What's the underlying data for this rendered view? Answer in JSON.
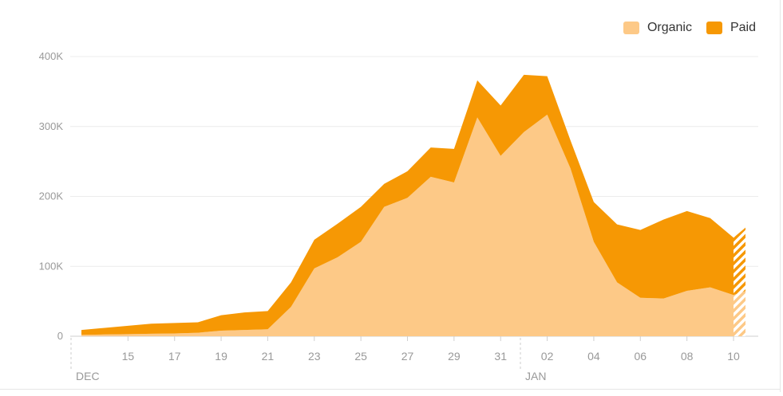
{
  "chart_data": {
    "type": "area",
    "stacked": true,
    "x": [
      "Dec 13",
      "Dec 14",
      "Dec 15",
      "Dec 16",
      "Dec 17",
      "Dec 18",
      "Dec 19",
      "Dec 20",
      "Dec 21",
      "Dec 22",
      "Dec 23",
      "Dec 24",
      "Dec 25",
      "Dec 26",
      "Dec 27",
      "Dec 28",
      "Dec 29",
      "Dec 30",
      "Dec 31",
      "Jan 01",
      "Jan 02",
      "Jan 03",
      "Jan 04",
      "Jan 05",
      "Jan 06",
      "Jan 07",
      "Jan 08",
      "Jan 09",
      "Jan 10"
    ],
    "series": [
      {
        "name": "Organic",
        "color": "#fdc987",
        "values": [
          2000,
          2500,
          3000,
          3500,
          4000,
          5000,
          8000,
          9000,
          10000,
          42000,
          97000,
          113000,
          135000,
          185000,
          198000,
          228000,
          220000,
          313000,
          258000,
          292000,
          317000,
          240000,
          135000,
          77000,
          55000,
          54000,
          65000,
          70000,
          59000
        ]
      },
      {
        "name": "Paid",
        "color": "#f69804",
        "values": [
          7000,
          9500,
          12000,
          14500,
          15000,
          15000,
          22000,
          25000,
          26000,
          35000,
          41000,
          48000,
          50000,
          33000,
          38000,
          42000,
          48000,
          53000,
          72000,
          82000,
          55000,
          40000,
          57000,
          83000,
          97000,
          113000,
          114000,
          99000,
          82000
        ]
      }
    ],
    "x_ticks": [
      "15",
      "17",
      "19",
      "21",
      "23",
      "25",
      "27",
      "29",
      "31",
      "02",
      "04",
      "06",
      "08",
      "10"
    ],
    "month_labels": [
      "DEC",
      "JAN"
    ],
    "y_ticks": [
      "0",
      "100K",
      "200K",
      "300K",
      "400K"
    ],
    "ylim": [
      0,
      400000
    ],
    "partial_last_point": true,
    "grid": "horizontal",
    "legend_position": "top-right"
  }
}
